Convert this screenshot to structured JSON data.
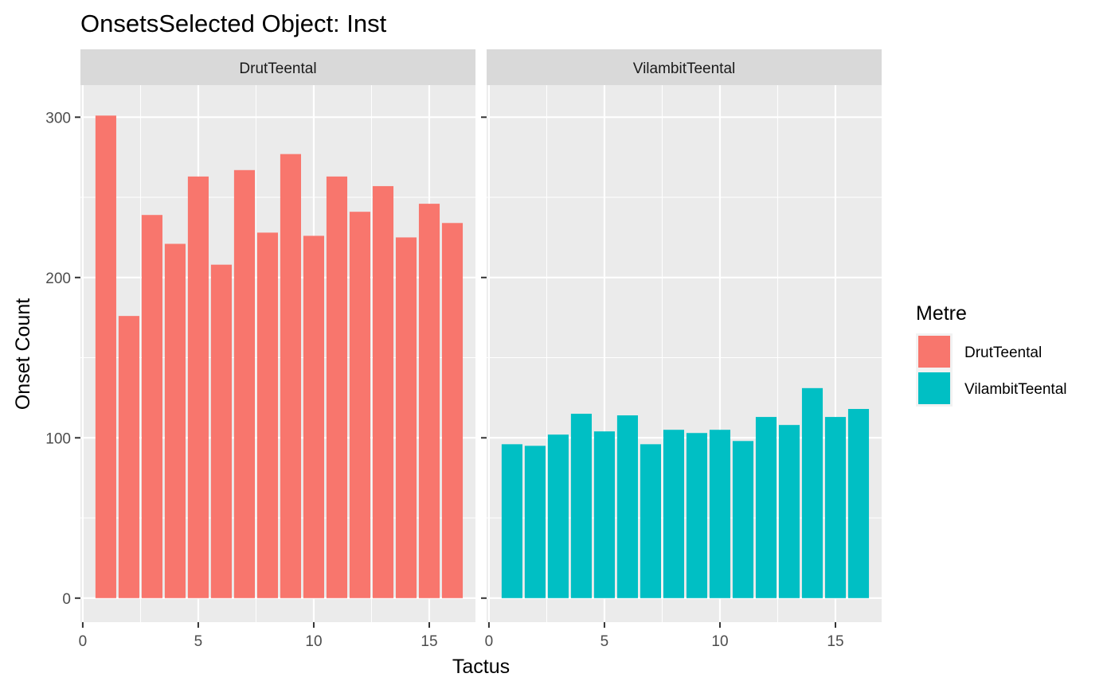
{
  "chart_data": {
    "type": "bar",
    "title": "OnsetsSelected Object: Inst",
    "xlabel": "Tactus",
    "ylabel": "Onset Count",
    "xlim": [
      -0.1,
      17.0
    ],
    "ylim": [
      -15,
      320
    ],
    "x_ticks": [
      0,
      5,
      10,
      15
    ],
    "y_ticks": [
      0,
      100,
      200,
      300
    ],
    "grid": true,
    "legend": {
      "title": "Metre",
      "position": "right",
      "entries": [
        {
          "label": "DrutTeental",
          "color": "#F8766D"
        },
        {
          "label": "VilambitTeental",
          "color": "#00BFC4"
        }
      ]
    },
    "facets": [
      {
        "label": "DrutTeental",
        "color": "#F8766D",
        "x": [
          1,
          2,
          3,
          4,
          5,
          6,
          7,
          8,
          9,
          10,
          11,
          12,
          13,
          14,
          15,
          16
        ],
        "values": [
          301,
          176,
          239,
          221,
          263,
          208,
          267,
          228,
          277,
          226,
          263,
          241,
          257,
          225,
          246,
          234
        ]
      },
      {
        "label": "VilambitTeental",
        "color": "#00BFC4",
        "x": [
          1,
          2,
          3,
          4,
          5,
          6,
          7,
          8,
          9,
          10,
          11,
          12,
          13,
          14,
          15,
          16
        ],
        "values": [
          96,
          95,
          102,
          115,
          104,
          114,
          96,
          105,
          103,
          105,
          98,
          113,
          108,
          131,
          113,
          118
        ]
      }
    ]
  }
}
